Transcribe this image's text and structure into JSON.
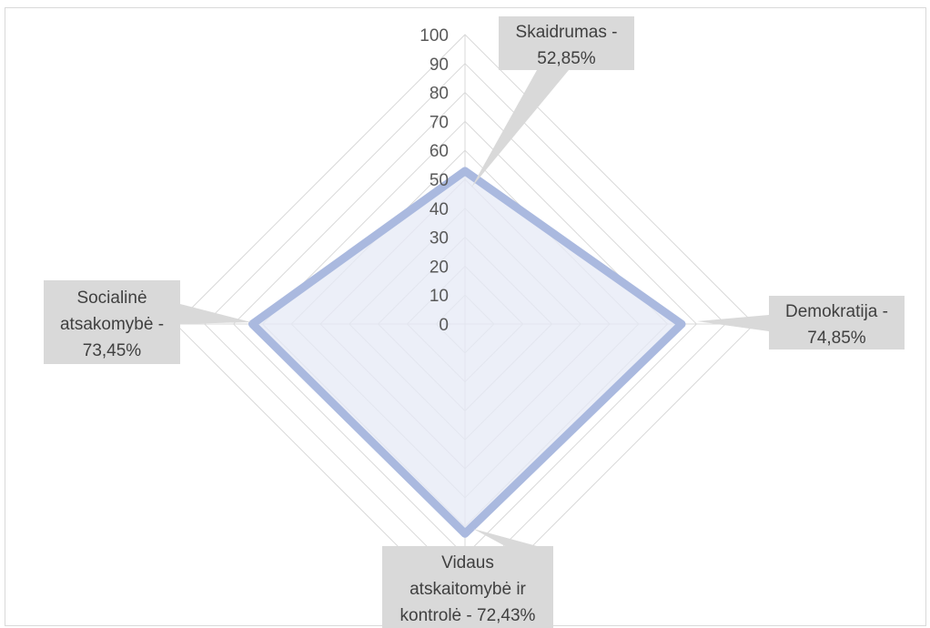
{
  "chart_data": {
    "type": "radar",
    "title": "",
    "axis_range": [
      0,
      100
    ],
    "ticks": [
      0,
      10,
      20,
      30,
      40,
      50,
      60,
      70,
      80,
      90,
      100
    ],
    "grid": true,
    "categories": [
      "Skaidrumas",
      "Demokratija",
      "Vidaus atskaitomybė ir kontrolė",
      "Socialinė atsakomybė"
    ],
    "series": [
      {
        "values": [
          52.85,
          74.85,
          72.43,
          73.45
        ],
        "color": "#aab9df"
      }
    ],
    "data_labels": [
      {
        "lines": [
          "Skaidrumas -",
          "52,85%"
        ]
      },
      {
        "lines": [
          "Demokratija -",
          "74,85%"
        ]
      },
      {
        "lines": [
          "Vidaus",
          "atskaitomybė ir",
          "kontrolė - 72,43%"
        ]
      },
      {
        "lines": [
          "Socialinė",
          "atsakomybė -",
          "73,45%"
        ]
      }
    ]
  },
  "colors": {
    "grid": "#d9d9d9",
    "series_line": "#aab9df",
    "series_fill": "#e5eaf6",
    "callout_bg": "#d9d9d9",
    "tick_text": "#595959",
    "callout_text": "#404040"
  }
}
